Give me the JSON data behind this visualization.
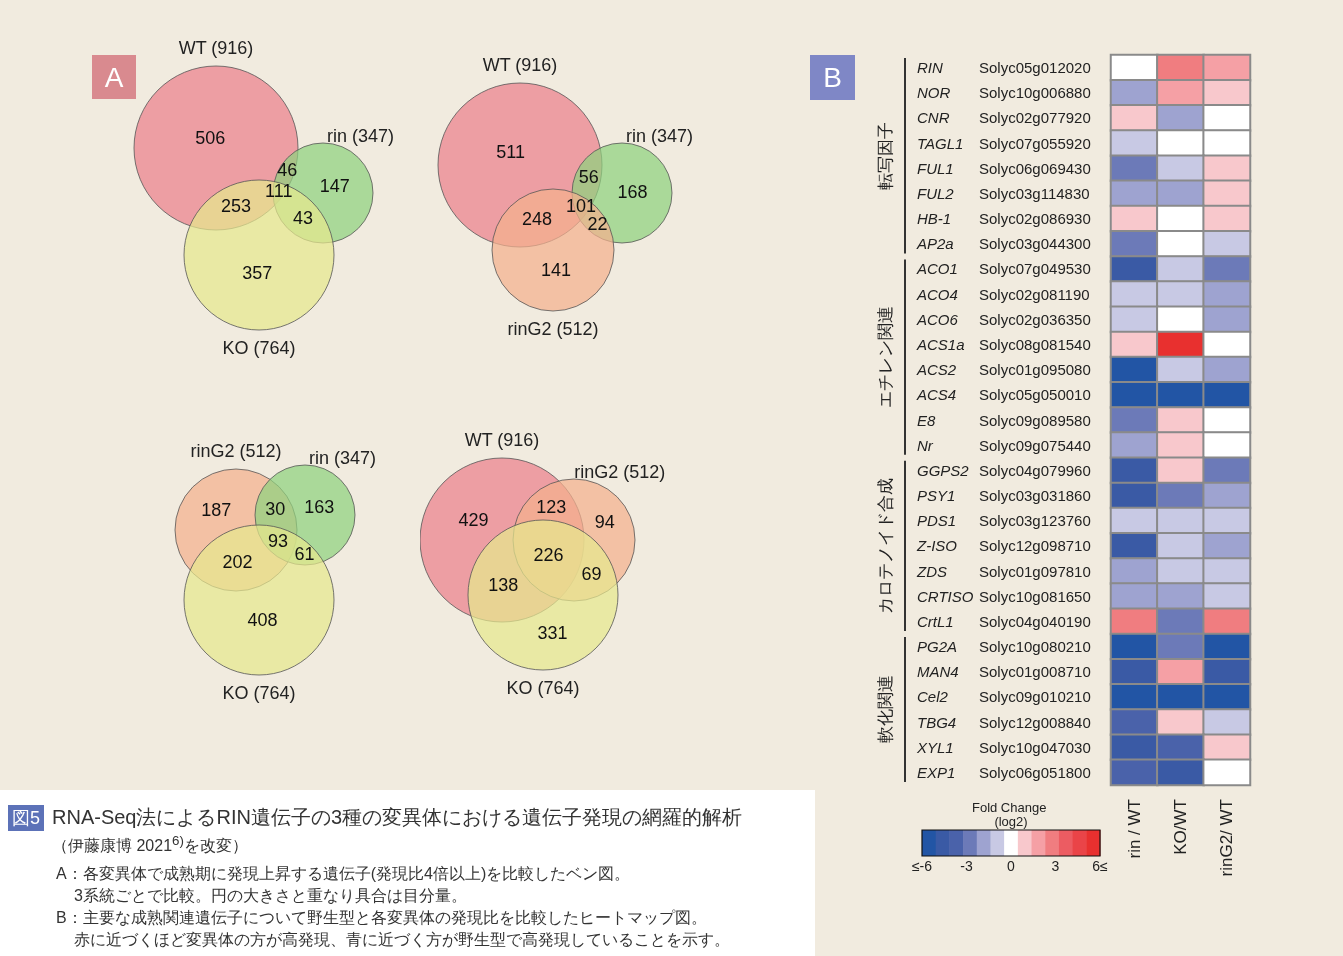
{
  "chart_data": [
    {
      "type": "other",
      "colors": [
        "#ec7f8c",
        "#8fd17e",
        "#e6e88e"
      ],
      "annotations": [
        "A",
        "WT (916)",
        "rin (347)",
        "KO (764)",
        "506",
        "46",
        "147",
        "253",
        "111",
        "43",
        "357"
      ]
    },
    {
      "type": "other",
      "colors": [
        "#ec7f8c",
        "#8fd17e",
        "#f4b08e"
      ],
      "annotations": [
        "WT (916)",
        "rin (347)",
        "rinG2 (512)",
        "511",
        "56",
        "168",
        "248",
        "101",
        "22",
        "141"
      ]
    },
    {
      "type": "other",
      "colors": [
        "#f4b08e",
        "#8fd17e",
        "#e6e88e"
      ],
      "annotations": [
        "rinG2 (512)",
        "rin (347)",
        "KO (764)",
        "187",
        "30",
        "163",
        "202",
        "93",
        "61",
        "408"
      ]
    },
    {
      "type": "other",
      "colors": [
        "#ec7f8c",
        "#f4b08e",
        "#e6e88e"
      ],
      "annotations": [
        "WT (916)",
        "rinG2 (512)",
        "KO (764)",
        "429",
        "123",
        "94",
        "138",
        "226",
        "69",
        "331"
      ]
    },
    {
      "type": "heatmap",
      "annotations": [
        "B",
        "転写因子",
        "エチレン関連",
        "カロテノイド合成",
        "軟化関連"
      ],
      "categories": [
        "rin / WT",
        "KO/WT",
        "rinG2/ WT"
      ],
      "y_categories": [
        "Solyc05g012020",
        "Solyc10g006880",
        "Solyc02g077920",
        "Solyc07g055920",
        "Solyc06g069430",
        "Solyc03g114830",
        "Solyc02g086930",
        "Solyc03g044300",
        "Solyc07g049530",
        "Solyc02g081190",
        "Solyc02g036350",
        "Solyc08g081540",
        "Solyc01g095080",
        "Solyc05g050010",
        "Solyc09g089580",
        "Solyc09g075440",
        "Solyc04g079960",
        "Solyc03g031860",
        "Solyc03g123760",
        "Solyc12g098710",
        "Solyc01g097810",
        "Solyc10g081650",
        "Solyc04g040190",
        "Solyc10g080210",
        "Solyc01g008710",
        "Solyc09g010210",
        "Solyc12g008840",
        "Solyc10g047030",
        "Solyc06g051800"
      ],
      "y2_categories": [
        "RIN",
        "NOR",
        "CNR",
        "TAGL1",
        "FUL1",
        "FUL2",
        "HB-1",
        "AP2a",
        "ACO1",
        "ACO4",
        "ACO6",
        "ACS1a",
        "ACS2",
        "ACS4",
        "E8",
        "Nr",
        "GGPS2",
        "PSY1",
        "PDS1",
        "Z-ISO",
        "ZDS",
        "CRTISO",
        "CrtL1",
        "PG2A",
        "MAN4",
        "Cel2",
        "TBG4",
        "XYL1",
        "EXP1"
      ],
      "cells": [
        [
          0,
          2.5,
          1.5
        ],
        [
          -1.5,
          2,
          0.5
        ],
        [
          0.5,
          -1.5,
          0
        ],
        [
          -1,
          0,
          0
        ],
        [
          -3,
          -1,
          1
        ],
        [
          -1.5,
          -2,
          1
        ],
        [
          1,
          0,
          1
        ],
        [
          -3,
          0,
          -0.5
        ],
        [
          -4.5,
          -1,
          -2.5
        ],
        [
          -1,
          -1,
          -1.5
        ],
        [
          -1,
          0,
          -1.5
        ],
        [
          1,
          5.5,
          0
        ],
        [
          -6,
          -1,
          -2
        ],
        [
          -6,
          -6,
          -5.5
        ],
        [
          -2.5,
          1,
          0
        ],
        [
          -1.5,
          1,
          0
        ],
        [
          -4.5,
          0.5,
          -3
        ],
        [
          -5,
          -2.5,
          -1.5
        ],
        [
          -0.5,
          -0.5,
          -1
        ],
        [
          -5,
          -1,
          -2
        ],
        [
          -2,
          -1,
          -1
        ],
        [
          -2,
          -1.5,
          -1
        ],
        [
          3,
          -2.5,
          3
        ],
        [
          -6,
          -2.5,
          -6
        ],
        [
          -5,
          2,
          -5
        ],
        [
          -6,
          -6,
          -6
        ],
        [
          -3.5,
          0.5,
          -0.5
        ],
        [
          -4.5,
          -4,
          0.5
        ],
        [
          -4,
          -4.5,
          0
        ]
      ],
      "clim": [
        -6,
        6
      ],
      "cticks": [
        {
          "value": -6,
          "label": "≤-6"
        },
        {
          "value": -3,
          "label": "-3"
        },
        {
          "value": 0,
          "label": "0"
        },
        {
          "value": 3,
          "label": "3"
        },
        {
          "value": 6,
          "label": "6≤"
        }
      ],
      "clabel": "Fold Change (log2)"
    },
    {
      "type": "other",
      "title": "RNA-Seq法によるRIN遺伝子の3種の変異体における遺伝子発現の網羅的解析",
      "subtitle": "（伊藤康博 2021$^{6)}$を改変）",
      "annotations": [
        "図5",
        "A：各変異体で成熟期に発現上昇する遺伝子(発現比4倍以上)を比較したベン図。",
        "3系統ごとで比較。円の大きさと重なり具合は目分量。",
        "B：主要な成熟関連遺伝子について野生型と各変異体の発現比を比較したヒートマップ図。",
        "赤に近づくほど変異体の方が高発現、青に近づく方が野生型で高発現していることを示す。"
      ]
    }
  ]
}
